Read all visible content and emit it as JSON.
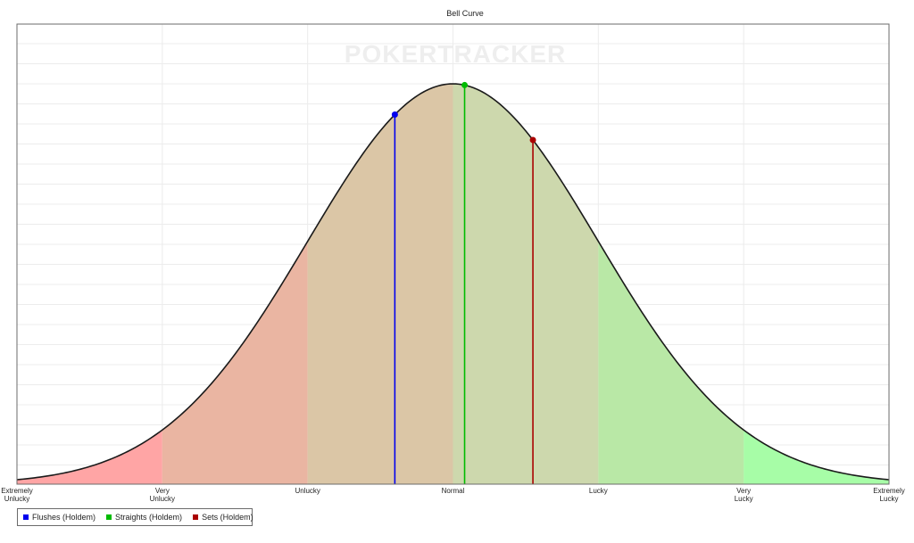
{
  "chart_data": {
    "type": "area",
    "title": "Bell Curve",
    "xlabel": "",
    "ylabel": "",
    "x_range": [
      -3,
      3
    ],
    "categories": [
      "Extremely\nUnlucky",
      "Very\nUnlucky",
      "Unlucky",
      "Normal",
      "Lucky",
      "Very\nLucky",
      "Extremely\nLucky"
    ],
    "category_positions": [
      -3,
      -2,
      -1,
      0,
      1,
      2,
      3
    ],
    "grid": true,
    "watermark": "POKERTRACKER",
    "bands": [
      {
        "from": -3,
        "to": -2,
        "color": "#ffa5a5"
      },
      {
        "from": -2,
        "to": -1,
        "color": "#eab5a2"
      },
      {
        "from": -1,
        "to": 0,
        "color": "#dbc6a6"
      },
      {
        "from": 0,
        "to": 1,
        "color": "#cdd8ad"
      },
      {
        "from": 1,
        "to": 2,
        "color": "#b9e8a6"
      },
      {
        "from": 2,
        "to": 3,
        "color": "#a7fda7"
      }
    ],
    "series": [
      {
        "name": "Flushes (Holdem)",
        "x": -0.4,
        "color": "#0000ee"
      },
      {
        "name": "Straights (Holdem)",
        "x": 0.08,
        "color": "#00bb00"
      },
      {
        "name": "Sets (Holdem)",
        "x": 0.55,
        "color": "#aa0000"
      }
    ],
    "legend_position": "bottom-left"
  }
}
